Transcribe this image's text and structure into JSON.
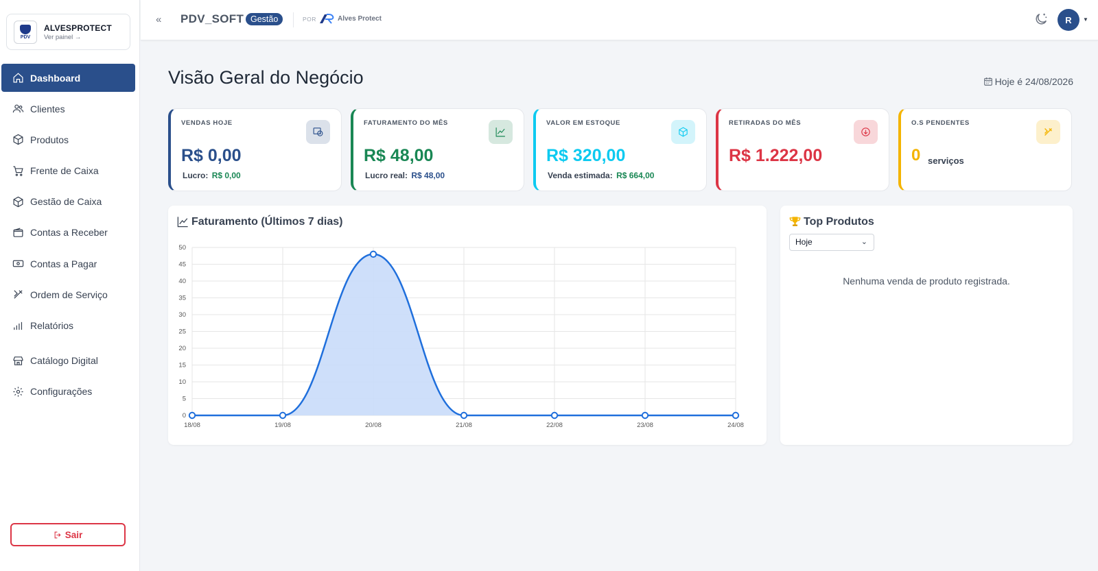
{
  "brand": {
    "name": "ALVESPROTECT",
    "sub": "Ver painel →",
    "logo_text": "PDV"
  },
  "nav": [
    {
      "label": "Dashboard",
      "icon": "home-icon",
      "active": true
    },
    {
      "label": "Clientes",
      "icon": "users-icon"
    },
    {
      "label": "Produtos",
      "icon": "box-icon"
    },
    {
      "label": "Frente de Caixa",
      "icon": "cart-icon"
    },
    {
      "label": "Gestão de Caixa",
      "icon": "box-icon"
    },
    {
      "label": "Contas a Receber",
      "icon": "wallet-icon"
    },
    {
      "label": "Contas a Pagar",
      "icon": "cash-icon"
    },
    {
      "label": "Ordem de Serviço",
      "icon": "tools-icon"
    },
    {
      "label": "Relatórios",
      "icon": "bar-chart-icon"
    },
    {
      "label": "Catálogo Digital",
      "icon": "store-icon"
    },
    {
      "label": "Configurações",
      "icon": "gear-icon"
    }
  ],
  "logout_label": "Sair",
  "topbar": {
    "app": "PDV_SOFT",
    "badge": "Gestão",
    "por": "POR",
    "partner": "Alves Protect",
    "avatar": "R"
  },
  "page": {
    "title": "Visão Geral do Negócio",
    "today": "Hoje é 24/08/2026"
  },
  "cards": [
    {
      "label": "VENDAS HOJE",
      "value": "R$ 0,00",
      "sub_label": "Lucro:",
      "sub_value": "R$ 0,00",
      "color": "#2a4f8b",
      "icon": "cash-register-icon"
    },
    {
      "label": "FATURAMENTO DO MÊS",
      "value": "R$ 48,00",
      "sub_label": "Lucro real:",
      "sub_value": "R$ 48,00",
      "color": "#198754",
      "icon": "trend-up-icon"
    },
    {
      "label": "VALOR EM ESTOQUE",
      "value": "R$ 320,00",
      "sub_label": "Venda estimada:",
      "sub_value": "R$ 664,00",
      "color": "#0dcaf0",
      "icon": "cube-icon"
    },
    {
      "label": "RETIRADAS DO MÊS",
      "value": "R$ 1.222,00",
      "color": "#dc3545",
      "icon": "arrow-down-circle-icon"
    },
    {
      "label": "O.S PENDENTES",
      "value": "0",
      "sub_label": "serviços",
      "color": "#f4b400",
      "icon": "tools-icon"
    }
  ],
  "chart_panel": {
    "title": "Faturamento (Últimos 7 dias)"
  },
  "top_products": {
    "title": "Top Produtos",
    "filter": "Hoje",
    "empty": "Nenhuma venda de produto registrada."
  },
  "chart_data": {
    "type": "area",
    "title": "Faturamento (Últimos 7 dias)",
    "categories": [
      "18/08",
      "19/08",
      "20/08",
      "21/08",
      "22/08",
      "23/08",
      "24/08"
    ],
    "series": [
      {
        "values": [
          0,
          0,
          48,
          0,
          0,
          0,
          0
        ]
      }
    ],
    "ylim": [
      0,
      50
    ],
    "yticks": [
      0,
      5,
      10,
      15,
      20,
      25,
      30,
      35,
      40,
      45,
      50
    ],
    "grid": true,
    "color": "#1f6fdc",
    "fill": "#c9dcfa"
  }
}
